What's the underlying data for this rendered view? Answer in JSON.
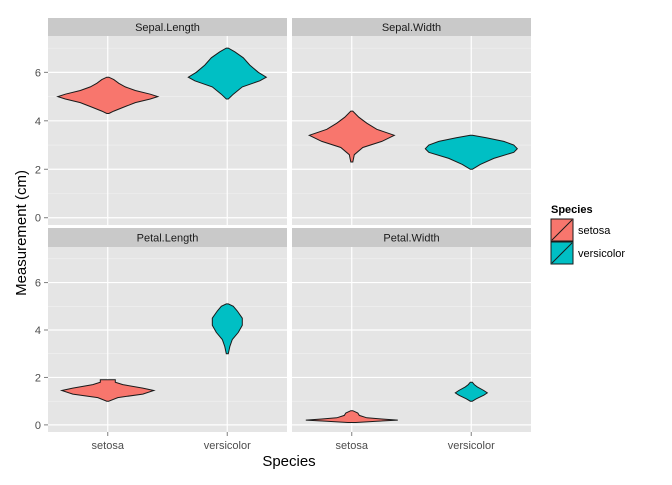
{
  "chart_data": {
    "type": "violin",
    "xlabel": "Species",
    "ylabel": "Measurement (cm)",
    "categories": [
      "setosa",
      "versicolor"
    ],
    "y_ticks": [
      0,
      2,
      4,
      6
    ],
    "ylim": [
      -0.3,
      7.5
    ],
    "facet_grid": "2x2",
    "legend": {
      "title": "Species",
      "position": "right",
      "items": [
        {
          "label": "setosa",
          "color": "#F8766D"
        },
        {
          "label": "versicolor",
          "color": "#00BFC4"
        }
      ]
    },
    "panels": [
      {
        "title": "Sepal.Length",
        "violins": [
          {
            "species": "setosa",
            "min": 4.3,
            "max": 5.8,
            "profile": [
              [
                4.3,
                0.02
              ],
              [
                4.4,
                0.12
              ],
              [
                4.55,
                0.3
              ],
              [
                4.75,
                0.55
              ],
              [
                4.9,
                0.85
              ],
              [
                5.0,
                1.0
              ],
              [
                5.1,
                0.85
              ],
              [
                5.25,
                0.55
              ],
              [
                5.4,
                0.35
              ],
              [
                5.55,
                0.22
              ],
              [
                5.7,
                0.12
              ],
              [
                5.8,
                0.02
              ]
            ]
          },
          {
            "species": "versicolor",
            "min": 4.9,
            "max": 7.0,
            "profile": [
              [
                4.9,
                0.02
              ],
              [
                5.1,
                0.12
              ],
              [
                5.4,
                0.3
              ],
              [
                5.65,
                0.65
              ],
              [
                5.8,
                0.78
              ],
              [
                6.0,
                0.62
              ],
              [
                6.3,
                0.45
              ],
              [
                6.6,
                0.32
              ],
              [
                6.85,
                0.15
              ],
              [
                7.0,
                0.02
              ]
            ]
          }
        ]
      },
      {
        "title": "Sepal.Width",
        "violins": [
          {
            "species": "setosa",
            "min": 2.3,
            "max": 4.4,
            "profile": [
              [
                2.3,
                0.02
              ],
              [
                2.6,
                0.05
              ],
              [
                2.9,
                0.22
              ],
              [
                3.15,
                0.6
              ],
              [
                3.4,
                0.85
              ],
              [
                3.65,
                0.5
              ],
              [
                3.9,
                0.3
              ],
              [
                4.15,
                0.14
              ],
              [
                4.4,
                0.02
              ]
            ]
          },
          {
            "species": "versicolor",
            "min": 2.0,
            "max": 3.4,
            "profile": [
              [
                2.0,
                0.02
              ],
              [
                2.2,
                0.18
              ],
              [
                2.45,
                0.45
              ],
              [
                2.7,
                0.85
              ],
              [
                2.85,
                0.92
              ],
              [
                3.0,
                0.85
              ],
              [
                3.15,
                0.65
              ],
              [
                3.3,
                0.3
              ],
              [
                3.4,
                0.02
              ]
            ]
          }
        ]
      },
      {
        "title": "Petal.Length",
        "violins": [
          {
            "species": "setosa",
            "min": 1.0,
            "max": 1.9,
            "profile": [
              [
                1.0,
                0.02
              ],
              [
                1.15,
                0.2
              ],
              [
                1.3,
                0.7
              ],
              [
                1.45,
                0.92
              ],
              [
                1.55,
                0.7
              ],
              [
                1.7,
                0.3
              ],
              [
                1.8,
                0.15
              ],
              [
                1.9,
                0.15
              ]
            ]
          },
          {
            "species": "versicolor",
            "min": 3.0,
            "max": 5.1,
            "profile": [
              [
                3.0,
                0.02
              ],
              [
                3.3,
                0.05
              ],
              [
                3.6,
                0.1
              ],
              [
                3.9,
                0.22
              ],
              [
                4.2,
                0.3
              ],
              [
                4.5,
                0.3
              ],
              [
                4.8,
                0.2
              ],
              [
                5.0,
                0.12
              ],
              [
                5.1,
                0.02
              ]
            ]
          }
        ]
      },
      {
        "title": "Petal.Width",
        "violins": [
          {
            "species": "setosa",
            "min": 0.1,
            "max": 0.6,
            "profile": [
              [
                0.1,
                0.08
              ],
              [
                0.15,
                0.5
              ],
              [
                0.2,
                0.92
              ],
              [
                0.25,
                0.6
              ],
              [
                0.3,
                0.3
              ],
              [
                0.4,
                0.15
              ],
              [
                0.5,
                0.12
              ],
              [
                0.6,
                0.02
              ]
            ]
          },
          {
            "species": "versicolor",
            "min": 1.0,
            "max": 1.8,
            "profile": [
              [
                1.0,
                0.02
              ],
              [
                1.1,
                0.1
              ],
              [
                1.25,
                0.25
              ],
              [
                1.35,
                0.32
              ],
              [
                1.45,
                0.25
              ],
              [
                1.6,
                0.12
              ],
              [
                1.7,
                0.06
              ],
              [
                1.8,
                0.02
              ]
            ]
          }
        ]
      }
    ]
  }
}
